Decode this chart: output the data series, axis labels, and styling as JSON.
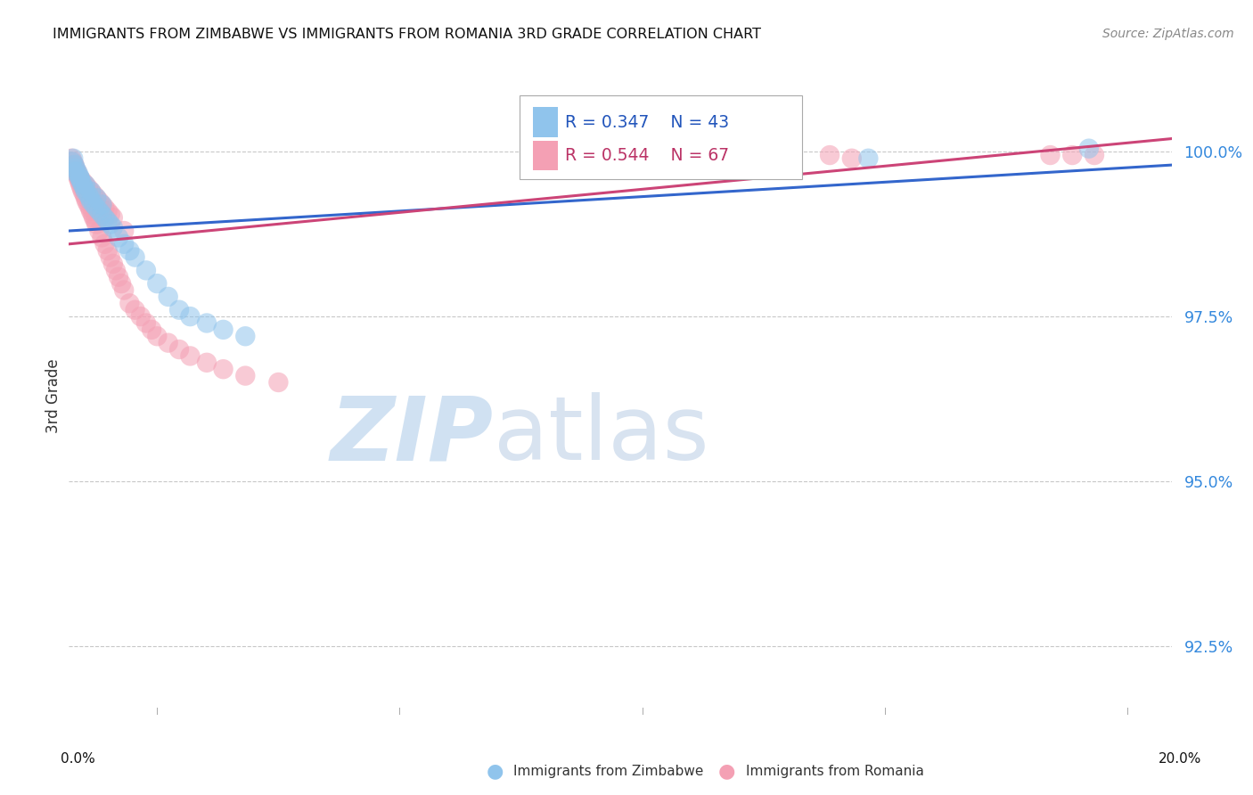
{
  "title": "IMMIGRANTS FROM ZIMBABWE VS IMMIGRANTS FROM ROMANIA 3RD GRADE CORRELATION CHART",
  "source": "Source: ZipAtlas.com",
  "ylabel": "3rd Grade",
  "y_ticks": [
    92.5,
    95.0,
    97.5,
    100.0
  ],
  "y_tick_labels": [
    "92.5%",
    "95.0%",
    "97.5%",
    "100.0%"
  ],
  "xlim": [
    0.0,
    20.0
  ],
  "ylim": [
    91.2,
    101.4
  ],
  "legend_label_zim": "Immigrants from Zimbabwe",
  "legend_label_rom": "Immigrants from Romania",
  "legend_R_zim": "R = 0.347",
  "legend_N_zim": "N = 43",
  "legend_R_rom": "R = 0.544",
  "legend_N_rom": "N = 67",
  "color_zim": "#90C4EC",
  "color_rom": "#F4A0B4",
  "line_color_zim": "#3366CC",
  "line_color_rom": "#CC4477",
  "zim_x": [
    0.05,
    0.08,
    0.1,
    0.12,
    0.15,
    0.18,
    0.2,
    0.22,
    0.25,
    0.28,
    0.3,
    0.35,
    0.38,
    0.4,
    0.45,
    0.5,
    0.55,
    0.6,
    0.65,
    0.7,
    0.75,
    0.8,
    0.9,
    1.0,
    1.1,
    1.2,
    1.4,
    1.6,
    1.8,
    2.0,
    2.2,
    2.5,
    2.8,
    3.2,
    0.1,
    0.2,
    0.3,
    0.4,
    0.5,
    0.6,
    9.5,
    14.5,
    18.5
  ],
  "zim_y": [
    99.85,
    99.9,
    99.8,
    99.75,
    99.7,
    99.65,
    99.6,
    99.55,
    99.5,
    99.45,
    99.4,
    99.35,
    99.3,
    99.25,
    99.2,
    99.15,
    99.1,
    99.05,
    99.0,
    98.95,
    98.9,
    98.85,
    98.7,
    98.6,
    98.5,
    98.4,
    98.2,
    98.0,
    97.8,
    97.6,
    97.5,
    97.4,
    97.3,
    97.2,
    99.7,
    99.6,
    99.5,
    99.4,
    99.3,
    99.2,
    99.95,
    99.9,
    100.05
  ],
  "rom_x": [
    0.05,
    0.07,
    0.09,
    0.11,
    0.13,
    0.15,
    0.17,
    0.19,
    0.21,
    0.23,
    0.25,
    0.28,
    0.3,
    0.32,
    0.35,
    0.38,
    0.4,
    0.43,
    0.45,
    0.48,
    0.5,
    0.55,
    0.6,
    0.65,
    0.7,
    0.75,
    0.8,
    0.85,
    0.9,
    0.95,
    1.0,
    1.1,
    1.2,
    1.3,
    1.4,
    1.5,
    1.6,
    1.8,
    2.0,
    2.2,
    2.5,
    2.8,
    3.2,
    3.8,
    0.1,
    0.15,
    0.2,
    0.25,
    0.3,
    0.35,
    0.4,
    0.45,
    0.5,
    0.55,
    0.6,
    0.65,
    0.7,
    0.75,
    0.8,
    1.0,
    8.5,
    9.8,
    13.8,
    14.2,
    17.8,
    18.2,
    18.6
  ],
  "rom_y": [
    99.9,
    99.85,
    99.8,
    99.75,
    99.7,
    99.65,
    99.6,
    99.55,
    99.5,
    99.45,
    99.4,
    99.35,
    99.3,
    99.25,
    99.2,
    99.15,
    99.1,
    99.05,
    99.0,
    98.95,
    98.9,
    98.8,
    98.7,
    98.6,
    98.5,
    98.4,
    98.3,
    98.2,
    98.1,
    98.0,
    97.9,
    97.7,
    97.6,
    97.5,
    97.4,
    97.3,
    97.2,
    97.1,
    97.0,
    96.9,
    96.8,
    96.7,
    96.6,
    96.5,
    99.8,
    99.7,
    99.6,
    99.55,
    99.5,
    99.45,
    99.4,
    99.35,
    99.3,
    99.25,
    99.2,
    99.15,
    99.1,
    99.05,
    99.0,
    98.8,
    99.95,
    99.9,
    99.95,
    99.9,
    99.95,
    99.95,
    99.95
  ],
  "zim_line_x": [
    0.0,
    20.0
  ],
  "zim_line_y": [
    98.8,
    99.8
  ],
  "rom_line_x": [
    0.0,
    20.0
  ],
  "rom_line_y": [
    98.6,
    100.2
  ]
}
